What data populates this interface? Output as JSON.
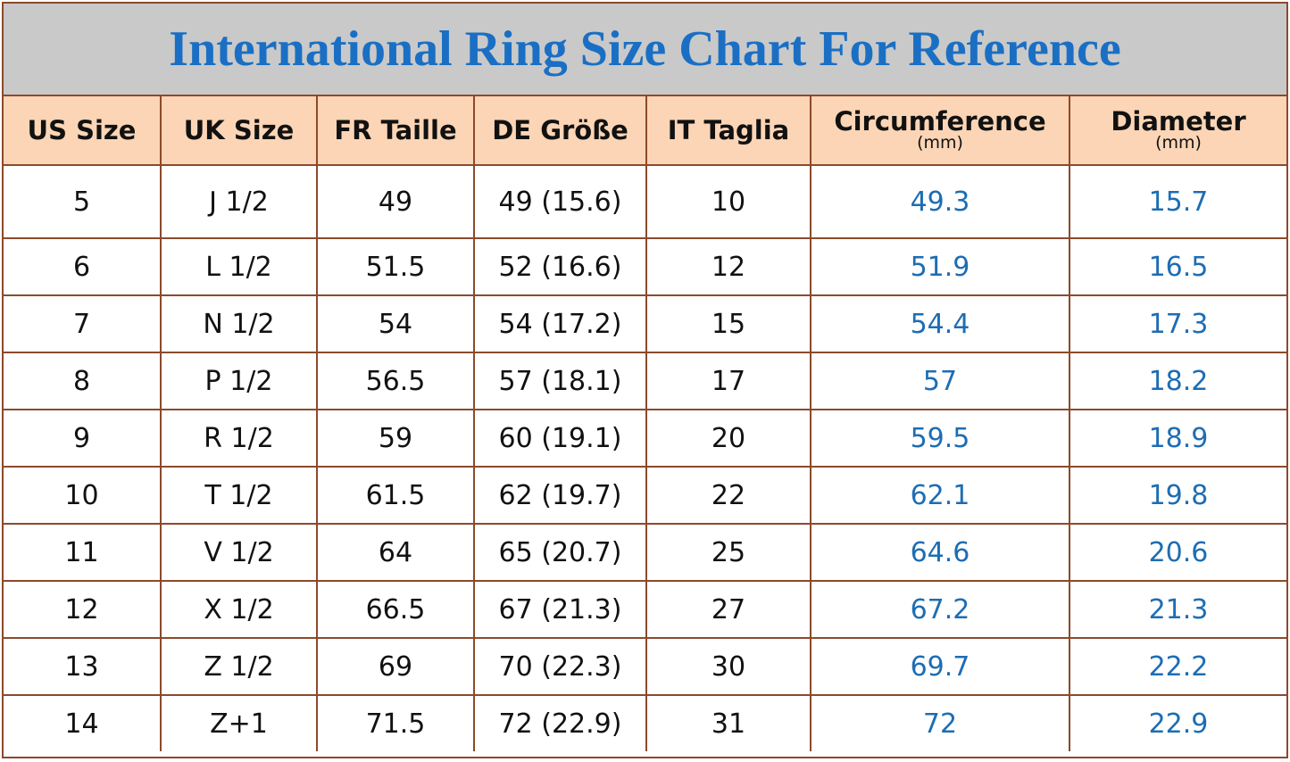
{
  "title": "International Ring Size Chart For Reference",
  "table": {
    "header": [
      {
        "label": "US Size"
      },
      {
        "label": "UK Size"
      },
      {
        "label": "FR Taille"
      },
      {
        "label": "DE Größe"
      },
      {
        "label": "IT Taglia"
      },
      {
        "label": "Circumference",
        "unit": "(mm)"
      },
      {
        "label": "Diameter",
        "unit": "(mm)"
      }
    ],
    "rows": [
      [
        "5",
        "J 1/2",
        "49",
        "49 (15.6)",
        "10",
        "49.3",
        "15.7"
      ],
      [
        "6",
        "L 1/2",
        "51.5",
        "52 (16.6)",
        "12",
        "51.9",
        "16.5"
      ],
      [
        "7",
        "N 1/2",
        "54",
        "54 (17.2)",
        "15",
        "54.4",
        "17.3"
      ],
      [
        "8",
        "P 1/2",
        "56.5",
        "57 (18.1)",
        "17",
        "57",
        "18.2"
      ],
      [
        "9",
        "R 1/2",
        "59",
        "60 (19.1)",
        "20",
        "59.5",
        "18.9"
      ],
      [
        "10",
        "T 1/2",
        "61.5",
        "62 (19.7)",
        "22",
        "62.1",
        "19.8"
      ],
      [
        "11",
        "V 1/2",
        "64",
        "65 (20.7)",
        "25",
        "64.6",
        "20.6"
      ],
      [
        "12",
        "X 1/2",
        "66.5",
        "67 (21.3)",
        "27",
        "67.2",
        "21.3"
      ],
      [
        "13",
        "Z 1/2",
        "69",
        "70 (22.3)",
        "30",
        "69.7",
        "22.2"
      ],
      [
        "14",
        "Z+1",
        "71.5",
        "72 (22.9)",
        "31",
        "72",
        "22.9"
      ]
    ]
  }
}
